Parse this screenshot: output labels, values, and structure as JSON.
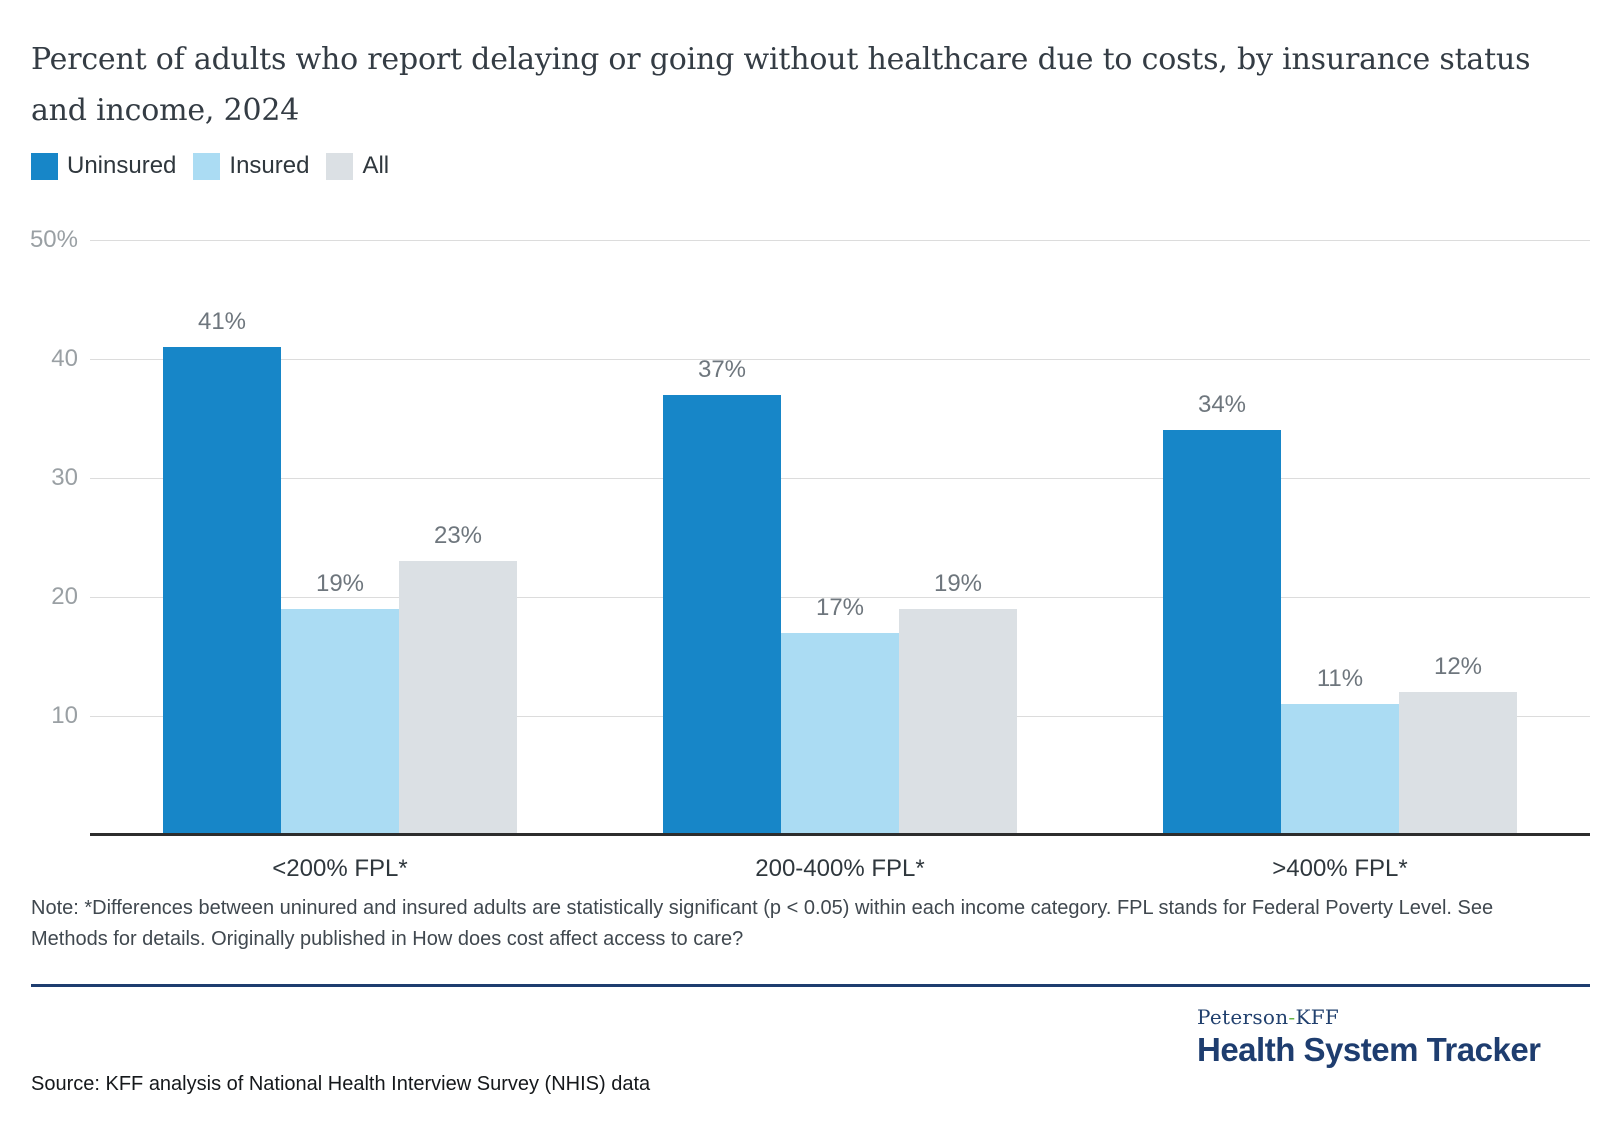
{
  "title": "Percent of adults who report delaying or going without healthcare due to costs, by insurance status and income, 2024",
  "legend": {
    "items": [
      {
        "label": "Uninsured",
        "color": "#1786c8"
      },
      {
        "label": "Insured",
        "color": "#abdcf3"
      },
      {
        "label": "All",
        "color": "#dbe0e4"
      }
    ]
  },
  "chart_data": {
    "type": "bar",
    "categories": [
      "<200% FPL*",
      "200-400% FPL*",
      ">400% FPL*"
    ],
    "series": [
      {
        "name": "Uninsured",
        "color": "#1786c8",
        "values": [
          41,
          37,
          34
        ],
        "labels": [
          "41%",
          "37%",
          "34%"
        ]
      },
      {
        "name": "Insured",
        "color": "#abdcf3",
        "values": [
          19,
          17,
          11
        ],
        "labels": [
          "19%",
          "17%",
          "11%"
        ]
      },
      {
        "name": "All",
        "color": "#dbe0e4",
        "values": [
          23,
          19,
          12
        ],
        "labels": [
          "23%",
          "19%",
          "12%"
        ]
      }
    ],
    "ylim": [
      0,
      50
    ],
    "yticks": [
      {
        "value": 50,
        "label": "50%"
      },
      {
        "value": 40,
        "label": "40"
      },
      {
        "value": 30,
        "label": "30"
      },
      {
        "value": 20,
        "label": "20"
      },
      {
        "value": 10,
        "label": "10"
      }
    ],
    "grid": true,
    "legend_position": "top-left",
    "value_suffix": "%"
  },
  "note": "Note: *Differences between uninured and insured adults are statistically significant (p < 0.05) within each income category. FPL stands for Federal Poverty Level. See Methods for details. Originally published in How does cost affect access to care?",
  "source": "Source: KFF analysis of National Health Interview Survey (NHIS) data",
  "branding": {
    "peterson": "Peterson",
    "hyphen": "-",
    "kff": "KFF",
    "tracker": "Health System Tracker",
    "navy": "#1e3d6f",
    "green": "#67b546"
  }
}
